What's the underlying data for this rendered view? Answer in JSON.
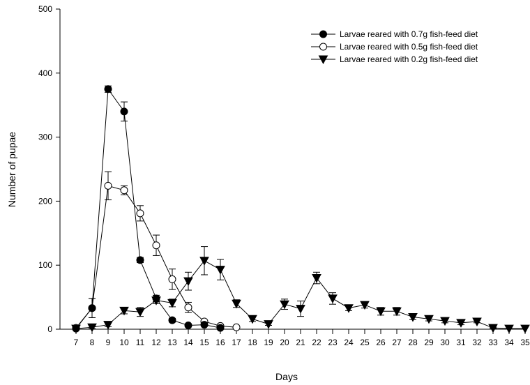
{
  "chart_data": {
    "type": "line",
    "title": "",
    "xlabel": "Days",
    "ylabel": "Number of pupae",
    "xlim": [
      6,
      35
    ],
    "ylim": [
      0,
      500
    ],
    "x_ticks": [
      7,
      8,
      9,
      10,
      11,
      12,
      13,
      14,
      15,
      16,
      17,
      18,
      19,
      20,
      21,
      22,
      23,
      24,
      25,
      26,
      27,
      28,
      29,
      30,
      31,
      32,
      33,
      34,
      35
    ],
    "y_ticks": [
      0,
      100,
      200,
      300,
      400,
      500
    ],
    "grid": false,
    "legend_position": "top-right",
    "series": [
      {
        "name": "Larvae reared with 0.7g fish-feed diet",
        "marker": "filled-circle",
        "x": [
          7,
          8,
          9,
          10,
          11,
          12,
          13,
          14,
          15,
          16
        ],
        "y": [
          1,
          33,
          375,
          340,
          108,
          48,
          14,
          6,
          7,
          2
        ],
        "error": [
          0,
          15,
          5,
          15,
          4,
          5,
          3,
          1,
          2,
          1
        ]
      },
      {
        "name": "Larvae reared with 0.5g fish-feed diet",
        "marker": "open-circle",
        "x": [
          7,
          8,
          9,
          10,
          11,
          12,
          13,
          14,
          15,
          16,
          17
        ],
        "y": [
          2,
          33,
          224,
          217,
          181,
          131,
          78,
          34,
          12,
          5,
          3
        ],
        "error": [
          0,
          15,
          22,
          7,
          12,
          16,
          16,
          8,
          2,
          1,
          0
        ]
      },
      {
        "name": "Larvae reared with 0.2g fish-feed diet",
        "marker": "filled-triangle-down",
        "x": [
          7,
          8,
          9,
          10,
          11,
          12,
          13,
          14,
          15,
          16,
          17,
          18,
          19,
          20,
          21,
          22,
          23,
          24,
          25,
          26,
          27,
          28,
          29,
          30,
          31,
          32,
          33,
          34,
          35
        ],
        "y": [
          1,
          3,
          7,
          29,
          27,
          45,
          41,
          75,
          107,
          93,
          40,
          16,
          8,
          39,
          32,
          80,
          48,
          33,
          38,
          28,
          28,
          19,
          16,
          13,
          10,
          12,
          2,
          1,
          1
        ],
        "error": [
          0,
          2,
          3,
          5,
          7,
          5,
          6,
          14,
          22,
          16,
          6,
          4,
          2,
          8,
          12,
          9,
          9,
          4,
          5,
          6,
          6,
          4,
          3,
          3,
          3,
          2,
          1,
          0,
          0
        ]
      }
    ]
  }
}
